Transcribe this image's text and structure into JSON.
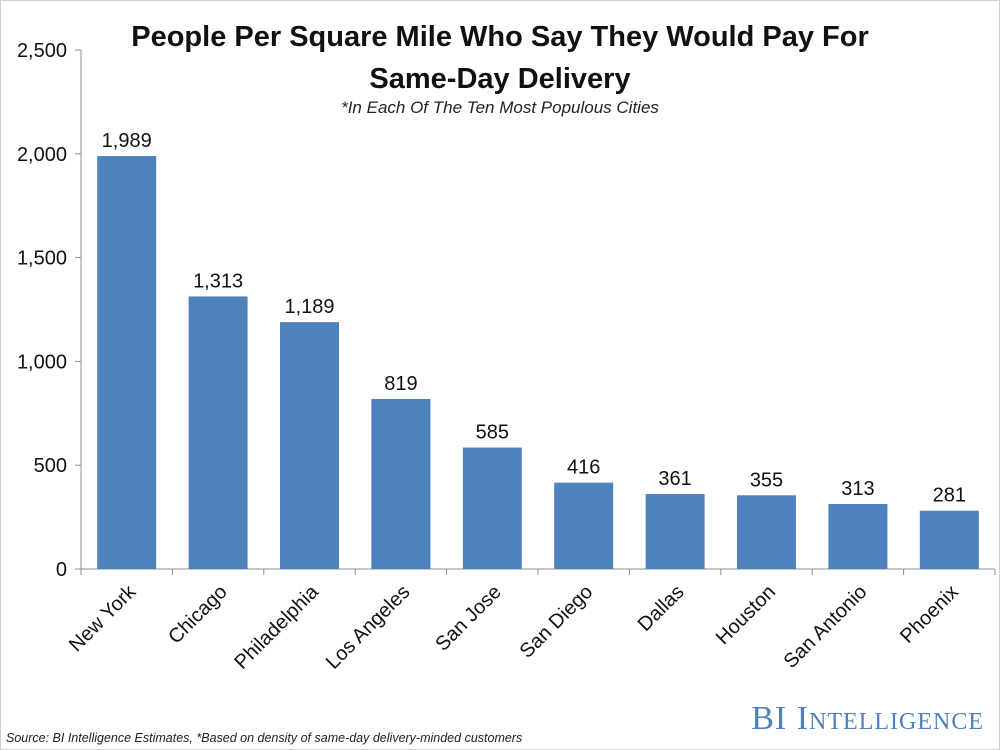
{
  "chart_data": {
    "type": "bar",
    "title": "People Per Square Mile Who Say They Would Pay For Same-Day Delivery",
    "subtitle": "*In Each Of The Ten Most Populous Cities",
    "categories": [
      "New York",
      "Chicago",
      "Philadelphia",
      "Los Angeles",
      "San Jose",
      "San Diego",
      "Dallas",
      "Houston",
      "San Antonio",
      "Phoenix"
    ],
    "values": [
      1989,
      1313,
      1189,
      819,
      585,
      416,
      361,
      355,
      313,
      281
    ],
    "value_labels": [
      "1,989",
      "1,313",
      "1,189",
      "819",
      "585",
      "416",
      "361",
      "355",
      "313",
      "281"
    ],
    "y_ticks": [
      0,
      500,
      1000,
      1500,
      2000,
      2500
    ],
    "y_tick_labels": [
      "0",
      "500",
      "1,000",
      "1,500",
      "2,000",
      "2,500"
    ],
    "ylim": [
      0,
      2500
    ],
    "xlabel": "",
    "ylabel": "",
    "grid": false,
    "bar_color": "#4f81bd"
  },
  "footer": {
    "source": "Source: BI Intelligence Estimates, *Based on density of same-day delivery-minded customers",
    "brand": "BI Intelligence"
  }
}
